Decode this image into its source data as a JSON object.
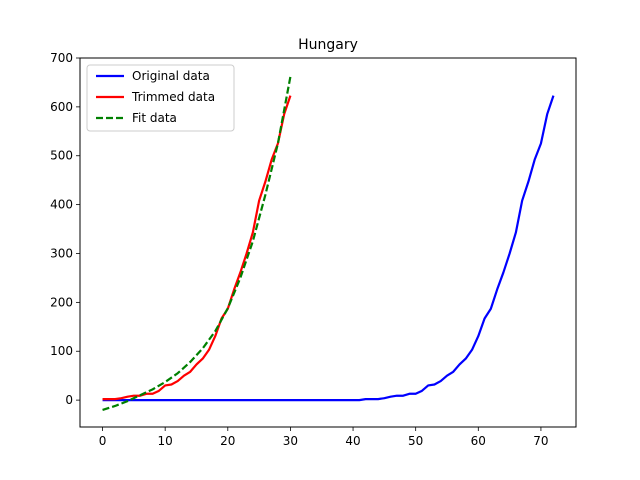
{
  "chart_data": {
    "type": "line",
    "title": "Hungary",
    "xlabel": "",
    "ylabel": "",
    "xlim": [
      -3.6,
      75.6
    ],
    "ylim": [
      -55,
      700
    ],
    "x_ticks": [
      0,
      10,
      20,
      30,
      40,
      50,
      60,
      70
    ],
    "y_ticks": [
      0,
      100,
      200,
      300,
      400,
      500,
      600,
      700
    ],
    "grid": false,
    "legend_position": "top-left",
    "series": [
      {
        "name": "Original data",
        "color": "#0000ff",
        "style": "solid",
        "x": [
          0,
          1,
          2,
          3,
          4,
          5,
          6,
          7,
          8,
          9,
          10,
          11,
          12,
          13,
          14,
          15,
          16,
          17,
          18,
          19,
          20,
          21,
          22,
          23,
          24,
          25,
          26,
          27,
          28,
          29,
          30,
          31,
          32,
          33,
          34,
          35,
          36,
          37,
          38,
          39,
          40,
          41,
          42,
          43,
          44,
          45,
          46,
          47,
          48,
          49,
          50,
          51,
          52,
          53,
          54,
          55,
          56,
          57,
          58,
          59,
          60,
          61,
          62,
          63,
          64,
          65,
          66,
          67,
          68,
          69,
          70,
          71,
          72
        ],
        "y": [
          0,
          0,
          0,
          0,
          0,
          0,
          0,
          0,
          0,
          0,
          0,
          0,
          0,
          0,
          0,
          0,
          0,
          0,
          0,
          0,
          0,
          0,
          0,
          0,
          0,
          0,
          0,
          0,
          0,
          0,
          0,
          0,
          0,
          0,
          0,
          0,
          0,
          0,
          0,
          0,
          0,
          0,
          2,
          2,
          2,
          4,
          7,
          9,
          9,
          13,
          13,
          19,
          30,
          32,
          39,
          50,
          58,
          73,
          85,
          103,
          131,
          167,
          187,
          226,
          261,
          300,
          343,
          408,
          447,
          492,
          525,
          585,
          623
        ]
      },
      {
        "name": "Trimmed data",
        "color": "#ff0000",
        "style": "solid",
        "x": [
          0,
          1,
          2,
          3,
          4,
          5,
          6,
          7,
          8,
          9,
          10,
          11,
          12,
          13,
          14,
          15,
          16,
          17,
          18,
          19,
          20,
          21,
          22,
          23,
          24,
          25,
          26,
          27,
          28,
          29,
          30
        ],
        "y": [
          2,
          2,
          2,
          4,
          7,
          9,
          9,
          13,
          13,
          19,
          30,
          32,
          39,
          50,
          58,
          73,
          85,
          103,
          131,
          167,
          187,
          226,
          261,
          300,
          343,
          408,
          447,
          492,
          525,
          585,
          623
        ]
      },
      {
        "name": "Fit data",
        "color": "#008000",
        "style": "dashed",
        "x": [
          0,
          2,
          4,
          6,
          8,
          10,
          12,
          14,
          16,
          18,
          20,
          22,
          24,
          26,
          28,
          30
        ],
        "y": [
          -20,
          -12,
          -2,
          10,
          22,
          37,
          55,
          78,
          106,
          141,
          188,
          250,
          325,
          420,
          525,
          662
        ]
      }
    ]
  }
}
